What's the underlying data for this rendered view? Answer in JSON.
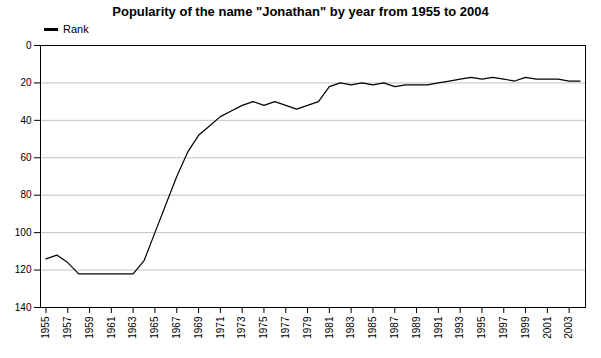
{
  "chart_data": {
    "type": "line",
    "title": "Popularity of the name \"Jonathan\" by year from 1955 to 2004",
    "x": [
      1955,
      1956,
      1957,
      1958,
      1959,
      1960,
      1961,
      1962,
      1963,
      1964,
      1965,
      1966,
      1967,
      1968,
      1969,
      1970,
      1971,
      1972,
      1973,
      1974,
      1975,
      1976,
      1977,
      1978,
      1979,
      1980,
      1981,
      1982,
      1983,
      1984,
      1985,
      1986,
      1987,
      1988,
      1989,
      1990,
      1991,
      1992,
      1993,
      1994,
      1995,
      1996,
      1997,
      1998,
      1999,
      2000,
      2001,
      2002,
      2003,
      2004
    ],
    "series": [
      {
        "name": "Rank",
        "color": "#000000",
        "values": [
          114,
          112,
          116,
          122,
          122,
          122,
          122,
          122,
          122,
          115,
          100,
          85,
          70,
          57,
          48,
          43,
          38,
          35,
          32,
          30,
          32,
          30,
          32,
          34,
          32,
          30,
          22,
          20,
          21,
          20,
          21,
          20,
          22,
          21,
          21,
          21,
          20,
          19,
          18,
          17,
          18,
          17,
          18,
          19,
          17,
          18,
          18,
          18,
          19,
          19
        ]
      }
    ],
    "xlim": [
      1954.5,
      2004.5
    ],
    "xticks": [
      1955,
      1957,
      1959,
      1961,
      1963,
      1965,
      1967,
      1969,
      1971,
      1973,
      1975,
      1977,
      1979,
      1981,
      1983,
      1985,
      1987,
      1989,
      1991,
      1993,
      1995,
      1997,
      1999,
      2001,
      2003
    ],
    "ylim": [
      140,
      0
    ],
    "yticks": [
      0,
      20,
      40,
      60,
      80,
      100,
      120,
      140
    ],
    "grid": "y",
    "legend": "upper left"
  }
}
